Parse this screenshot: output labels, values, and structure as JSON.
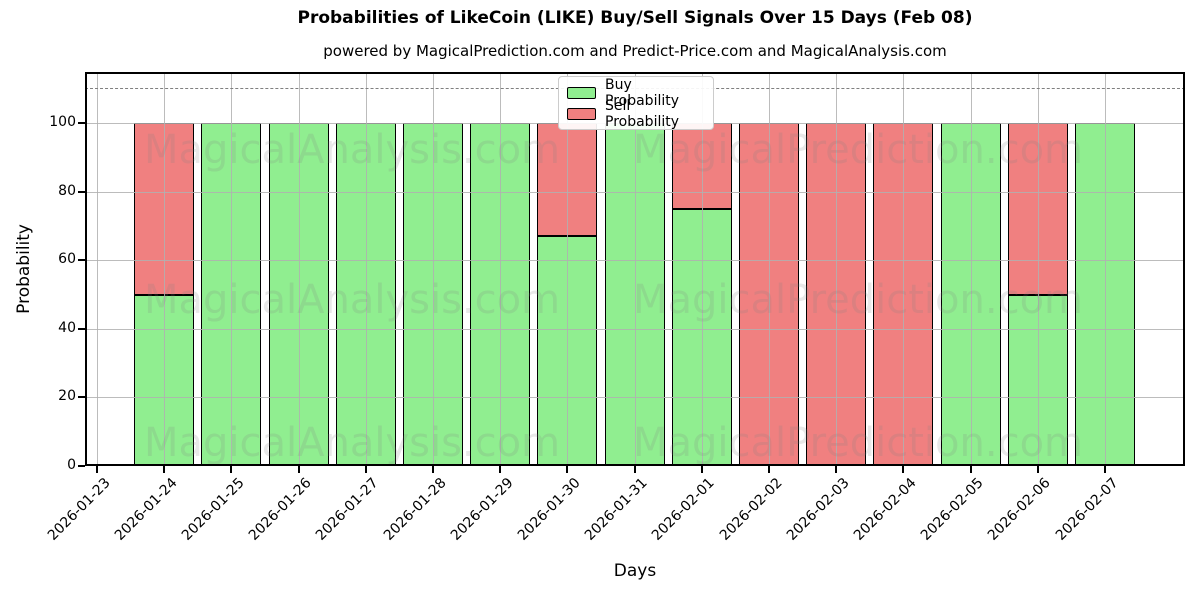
{
  "chart_data": {
    "type": "bar",
    "stacked": true,
    "title": "Probabilities of LikeCoin (LIKE) Buy/Sell Signals Over 15 Days (Feb 08)",
    "subtitle": "powered by MagicalPrediction.com and Predict-Price.com and MagicalAnalysis.com",
    "xlabel": "Days",
    "ylabel": "Probability",
    "ylim": [
      0,
      115
    ],
    "yticks": [
      0,
      20,
      40,
      60,
      80,
      100
    ],
    "dashed_line_y": 110,
    "grid": true,
    "legend_position": "top center",
    "categories": [
      "2026-01-23",
      "2026-01-24",
      "2026-01-25",
      "2026-01-26",
      "2026-01-27",
      "2026-01-28",
      "2026-01-29",
      "2026-01-30",
      "2026-01-31",
      "2026-02-01",
      "2026-02-02",
      "2026-02-03",
      "2026-02-04",
      "2026-02-05",
      "2026-02-06",
      "2026-02-07"
    ],
    "series": [
      {
        "name": "Buy Probability",
        "color": "#90EE90",
        "values": [
          null,
          50,
          100,
          100,
          100,
          100,
          100,
          67,
          100,
          75,
          0,
          0,
          0,
          100,
          50,
          100
        ]
      },
      {
        "name": "Sell Probability",
        "color": "#F08080",
        "values": [
          null,
          50,
          0,
          0,
          0,
          0,
          0,
          33,
          0,
          25,
          100,
          100,
          100,
          0,
          50,
          0
        ]
      }
    ]
  },
  "watermarks": {
    "left_text": "MagicalAnalysis.com",
    "right_text": "MagicalPrediction.com"
  },
  "colors": {
    "bar_edge": "#000000",
    "grid": "#b0b0b0",
    "dashed_line": "#7f7f7f",
    "axes_spine": "#000000",
    "legend_border": "#cccccc",
    "background": "#ffffff"
  }
}
